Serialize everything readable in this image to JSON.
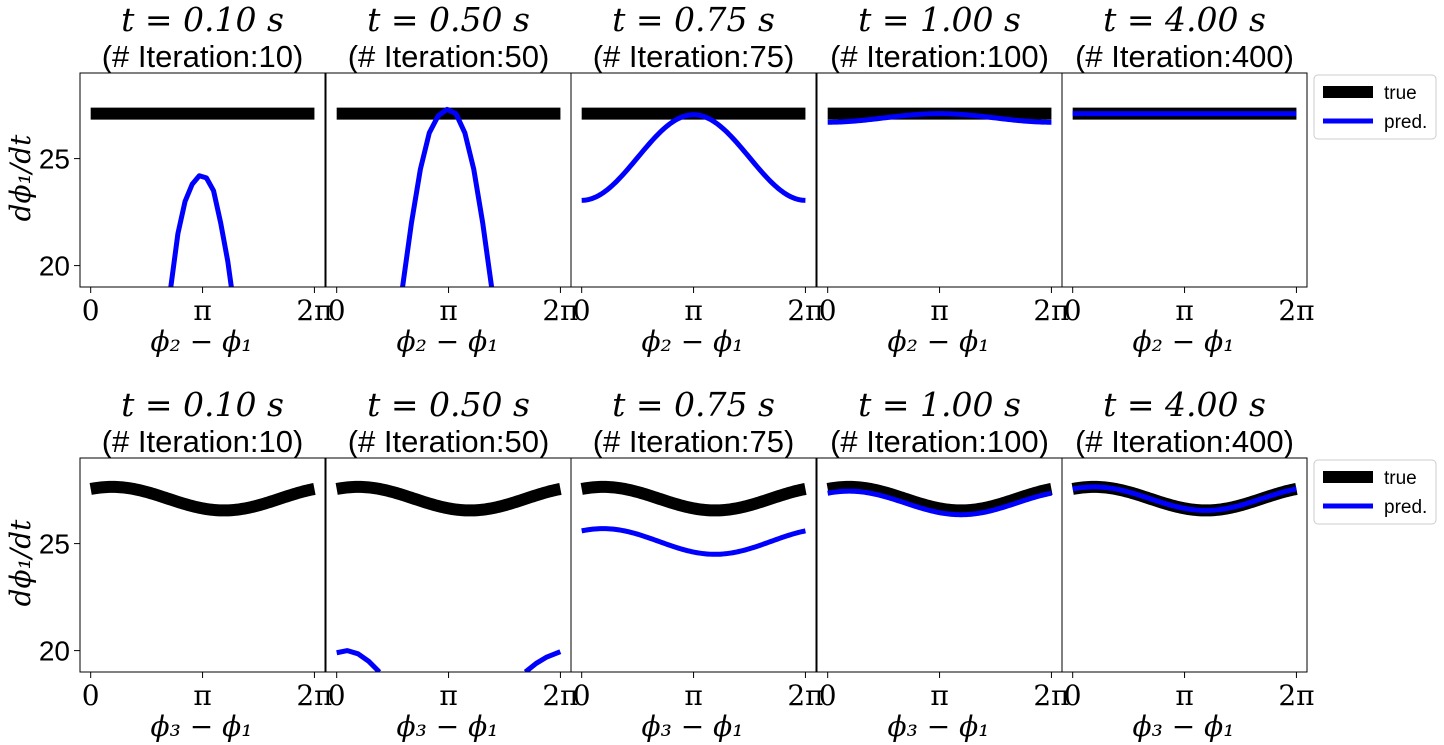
{
  "chart_data": {
    "type": "line",
    "ylim": [
      19,
      29
    ],
    "yticks": [
      20,
      25
    ],
    "xrange": [
      -0.3,
      6.58
    ],
    "xticks": [
      0,
      3.14159,
      6.28318
    ],
    "xtick_labels": [
      "0",
      "π",
      "2π"
    ],
    "ylabel": "dϕ₁/dt",
    "legend": {
      "placement": "outside-right",
      "entries": [
        "true",
        "pred."
      ]
    },
    "colors": {
      "true": "#000000",
      "pred": "#0000ff"
    },
    "rows": [
      {
        "xlabel": "ϕ₂ − ϕ₁",
        "true": {
          "type": "constant",
          "value": 27.1
        },
        "panels": [
          {
            "title_t": "t = 0.10 s",
            "title_iter": "(# Iteration:10)",
            "pred": {
              "points": [
                [
                  2.25,
                  19.0
                ],
                [
                  2.45,
                  21.5
                ],
                [
                  2.65,
                  23.0
                ],
                [
                  2.85,
                  23.8
                ],
                [
                  3.05,
                  24.2
                ],
                [
                  3.25,
                  24.1
                ],
                [
                  3.45,
                  23.5
                ],
                [
                  3.65,
                  22.0
                ],
                [
                  3.85,
                  20.2
                ],
                [
                  3.95,
                  19.0
                ]
              ]
            }
          },
          {
            "title_t": "t = 0.50 s",
            "title_iter": "(# Iteration:50)",
            "pred": {
              "points": [
                [
                  1.85,
                  19.0
                ],
                [
                  2.1,
                  22.0
                ],
                [
                  2.35,
                  24.5
                ],
                [
                  2.6,
                  26.2
                ],
                [
                  2.85,
                  27.0
                ],
                [
                  3.1,
                  27.3
                ],
                [
                  3.35,
                  27.1
                ],
                [
                  3.6,
                  26.2
                ],
                [
                  3.85,
                  24.5
                ],
                [
                  4.1,
                  22.0
                ],
                [
                  4.35,
                  19.0
                ]
              ]
            }
          },
          {
            "title_t": "t = 0.75 s",
            "title_iter": "(# Iteration:75)",
            "pred": {
              "type": "cos",
              "A": 25.05,
              "B": -2.0,
              "C": 0.0,
              "range": [
                0,
                6.28318
              ]
            }
          },
          {
            "title_t": "t = 1.00 s",
            "title_iter": "(# Iteration:100)",
            "pred": {
              "type": "cos",
              "A": 26.9,
              "B": -0.2,
              "C": 0.0,
              "range": [
                0,
                6.28318
              ]
            }
          },
          {
            "title_t": "t = 4.00 s",
            "title_iter": "(# Iteration:400)",
            "pred": {
              "type": "cos",
              "A": 27.1,
              "B": 0.0,
              "C": 0.0,
              "range": [
                0,
                6.28318
              ]
            }
          }
        ]
      },
      {
        "xlabel": "ϕ₃ − ϕ₁",
        "true": {
          "type": "cos",
          "A": 27.1,
          "B": 0.55,
          "C": 0.6,
          "range": [
            0,
            6.28318
          ]
        },
        "panels": [
          {
            "title_t": "t = 0.10 s",
            "title_iter": "(# Iteration:10)",
            "pred": null
          },
          {
            "title_t": "t = 0.50 s",
            "title_iter": "(# Iteration:50)",
            "pred": {
              "segments": [
                [
                  [
                    0,
                    19.9
                  ],
                  [
                    0.3,
                    20.0
                  ],
                  [
                    0.6,
                    19.85
                  ],
                  [
                    0.9,
                    19.5
                  ],
                  [
                    1.2,
                    19.0
                  ]
                ],
                [
                  [
                    5.3,
                    19.0
                  ],
                  [
                    5.6,
                    19.4
                  ],
                  [
                    5.9,
                    19.7
                  ],
                  [
                    6.28,
                    19.95
                  ]
                ]
              ]
            }
          },
          {
            "title_t": "t = 0.75 s",
            "title_iter": "(# Iteration:75)",
            "pred": {
              "type": "cos",
              "A": 25.1,
              "B": 0.6,
              "C": 0.6,
              "range": [
                0,
                6.28318
              ]
            }
          },
          {
            "title_t": "t = 1.00 s",
            "title_iter": "(# Iteration:100)",
            "pred": {
              "type": "cos",
              "A": 26.9,
              "B": 0.55,
              "C": 0.6,
              "range": [
                0,
                6.28318
              ]
            }
          },
          {
            "title_t": "t = 4.00 s",
            "title_iter": "(# Iteration:400)",
            "pred": {
              "type": "cos",
              "A": 27.1,
              "B": 0.55,
              "C": 0.6,
              "range": [
                0,
                6.28318
              ]
            }
          }
        ]
      }
    ]
  }
}
